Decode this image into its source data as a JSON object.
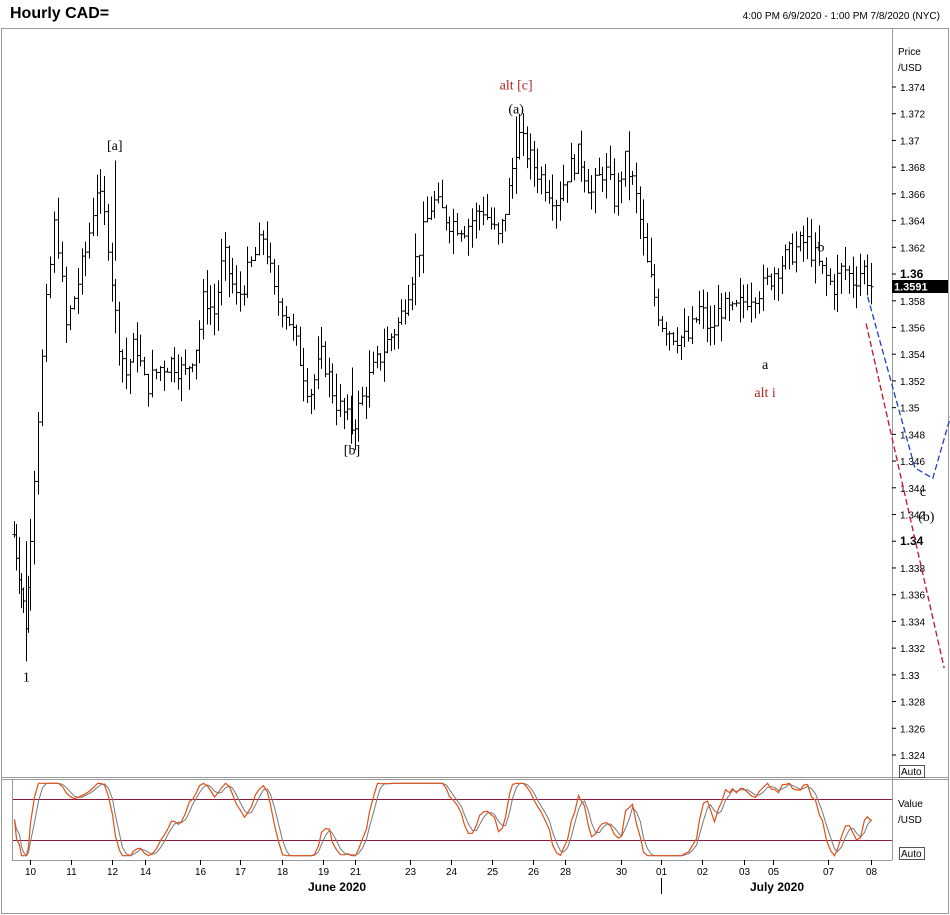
{
  "header": {
    "title": "Hourly CAD=",
    "range": "4:00 PM 6/9/2020 - 1:00 PM 7/8/2020 (NYC)"
  },
  "chart_data": [
    {
      "type": "ohlc",
      "panel": "price",
      "axis_title": "Price",
      "axis_unit": "/USD",
      "ylim": [
        1.3225,
        1.3775
      ],
      "yticks": [
        1.324,
        1.326,
        1.328,
        1.33,
        1.332,
        1.334,
        1.336,
        1.338,
        1.34,
        1.342,
        1.344,
        1.346,
        1.348,
        1.35,
        1.352,
        1.354,
        1.356,
        1.358,
        1.36,
        1.362,
        1.364,
        1.366,
        1.368,
        1.37,
        1.372,
        1.374
      ],
      "yticks_bold": [
        1.34,
        1.36
      ],
      "last_price": "1.3591",
      "scale_button": "Auto",
      "x": [
        "10",
        "11",
        "12",
        "14",
        "16",
        "17",
        "18",
        "19",
        "21",
        "23",
        "24",
        "25",
        "26",
        "28",
        "30",
        "01",
        "02",
        "03",
        "05",
        "07",
        "08"
      ],
      "x_month_labels": [
        "June 2020",
        "July 2020"
      ],
      "series": [
        {
          "path_days": [
            0,
            0.6,
            1,
            1.25,
            1.5,
            1.8,
            2.1,
            2.4,
            2.7,
            3.0,
            3.3,
            3.6,
            3.9,
            4.2,
            4.6,
            5.0,
            5.4,
            5.8,
            6.0,
            6.3,
            6.6,
            7.0,
            7.4,
            7.8,
            8.1,
            8.5,
            8.8,
            9.2,
            9.6,
            10.0,
            10.5,
            11.0,
            11.5,
            12.0,
            12.5,
            13.0,
            13.5,
            14.0,
            14.5,
            15.0,
            15.3,
            15.6,
            16.0,
            16.4,
            16.8,
            17.1,
            17.5,
            17.9,
            18.3,
            18.6,
            18.9,
            19.2,
            19.6,
            20.0,
            20.4,
            20.8,
            21.2,
            21.5,
            21.8,
            22.2,
            22.7,
            23.1,
            23.5,
            23.9,
            24.4,
            24.8,
            25.2,
            25.5,
            25.8,
            26.1,
            26.35
          ],
          "path_values": [
            1.3405,
            1.3335,
            1.349,
            1.358,
            1.3645,
            1.356,
            1.359,
            1.362,
            1.3665,
            1.3635,
            1.356,
            1.3525,
            1.355,
            1.3515,
            1.353,
            1.3535,
            1.3525,
            1.355,
            1.3585,
            1.357,
            1.3615,
            1.358,
            1.3605,
            1.363,
            1.3585,
            1.357,
            1.3545,
            1.351,
            1.354,
            1.3505,
            1.3485,
            1.352,
            1.3545,
            1.3565,
            1.361,
            1.3655,
            1.364,
            1.3635,
            1.365,
            1.3625,
            1.366,
            1.3705,
            1.3685,
            1.367,
            1.3655,
            1.3675,
            1.369,
            1.366,
            1.368,
            1.3655,
            1.3685,
            1.3665,
            1.3605,
            1.3565,
            1.3555,
            1.355,
            1.3575,
            1.3555,
            1.3575,
            1.357,
            1.3585,
            1.359,
            1.3605,
            1.3615,
            1.3625,
            1.3605,
            1.359,
            1.3605,
            1.3595,
            1.3605,
            1.3591
          ]
        }
      ],
      "wave_labels": [
        {
          "text": "1",
          "day": 0.6,
          "value": 1.3295,
          "color": "#000000"
        },
        {
          "text": "[a]",
          "day": 3.25,
          "value": 1.3693,
          "color": "#000000"
        },
        {
          "text": "[b]",
          "day": 10.5,
          "value": 1.3465,
          "color": "#000000"
        },
        {
          "text": "alt [c]",
          "day": 15.55,
          "value": 1.3738,
          "color": "#b22222"
        },
        {
          "text": "(a)",
          "day": 15.55,
          "value": 1.372,
          "color": "#000000"
        },
        {
          "text": "b",
          "day": 24.85,
          "value": 1.3617,
          "color": "#000000"
        },
        {
          "text": "a",
          "day": 23.15,
          "value": 1.3529,
          "color": "#000000"
        },
        {
          "text": "alt i",
          "day": 23.15,
          "value": 1.3508,
          "color": "#b22222"
        },
        {
          "text": "c",
          "day": 27.95,
          "value": 1.3434,
          "color": "#000000"
        },
        {
          "text": "(b)",
          "day": 28.05,
          "value": 1.3415,
          "color": "#000000"
        }
      ],
      "projections": [
        {
          "color": "#1f3fbf",
          "points": [
            [
              26.25,
              1.3583
            ],
            [
              27.7,
              1.3455
            ],
            [
              28.25,
              1.3447
            ],
            [
              29.5,
              1.3553
            ]
          ]
        },
        {
          "color": "#c8102e",
          "points": [
            [
              26.2,
              1.3563
            ],
            [
              28.6,
              1.3305
            ]
          ]
        }
      ]
    },
    {
      "type": "line",
      "panel": "oscillator",
      "axis_title": "Value",
      "axis_unit": "/USD",
      "ylim": [
        0,
        100
      ],
      "overbought": 80,
      "oversold": 20,
      "scale_button": "Auto",
      "series": [
        {
          "name": "",
          "color": "#e0501a"
        },
        {
          "name": "",
          "color": "#777777"
        }
      ]
    }
  ]
}
